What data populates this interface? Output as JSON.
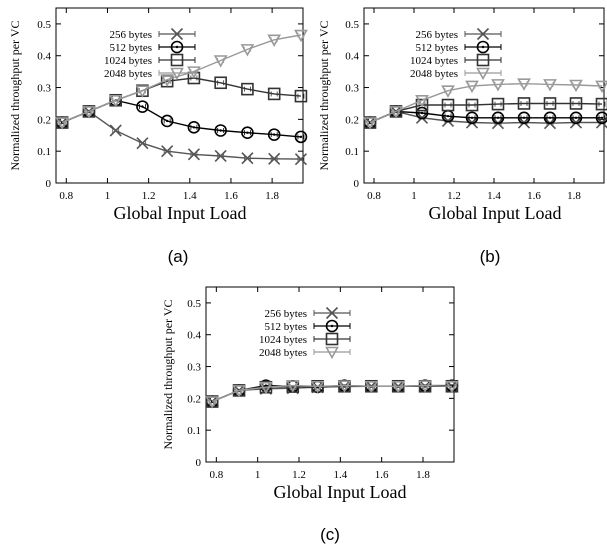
{
  "chart_data": [
    {
      "type": "line",
      "caption": "(a)",
      "xlabel": "Global Input Load",
      "ylabel": "Normalized throughput per VC",
      "xlim": [
        0.75,
        1.95
      ],
      "ylim": [
        0,
        0.55
      ],
      "xticks": [
        "0.8",
        "1",
        "1.2",
        "1.4",
        "1.6",
        "1.8"
      ],
      "yticks": [
        "0",
        "0.1",
        "0.2",
        "0.3",
        "0.4",
        "0.5"
      ],
      "legend_position": "top-left",
      "x": [
        0.78,
        0.91,
        1.04,
        1.17,
        1.29,
        1.42,
        1.55,
        1.68,
        1.81,
        1.94
      ],
      "series": [
        {
          "name": "256 bytes",
          "marker": "x",
          "color": "#555555",
          "values": [
            0.19,
            0.225,
            0.165,
            0.125,
            0.1,
            0.09,
            0.085,
            0.078,
            0.076,
            0.075
          ]
        },
        {
          "name": "512 bytes",
          "marker": "circle",
          "color": "#000000",
          "values": [
            0.19,
            0.225,
            0.26,
            0.24,
            0.195,
            0.175,
            0.165,
            0.158,
            0.152,
            0.145
          ]
        },
        {
          "name": "1024 bytes",
          "marker": "square",
          "color": "#333333",
          "values": [
            0.19,
            0.225,
            0.26,
            0.29,
            0.32,
            0.33,
            0.315,
            0.295,
            0.28,
            0.273
          ]
        },
        {
          "name": "2048 bytes",
          "marker": "triangle",
          "color": "#999999",
          "values": [
            0.19,
            0.225,
            0.26,
            0.29,
            0.325,
            0.35,
            0.385,
            0.42,
            0.45,
            0.465
          ]
        }
      ]
    },
    {
      "type": "line",
      "caption": "(b)",
      "xlabel": "Global Input Load",
      "ylabel": "Normalized throughput per VC",
      "xlim": [
        0.75,
        1.95
      ],
      "ylim": [
        0,
        0.55
      ],
      "xticks": [
        "0.8",
        "1",
        "1.2",
        "1.4",
        "1.6",
        "1.8"
      ],
      "yticks": [
        "0",
        "0.1",
        "0.2",
        "0.3",
        "0.4",
        "0.5"
      ],
      "legend_position": "top-left",
      "x": [
        0.78,
        0.91,
        1.04,
        1.17,
        1.29,
        1.42,
        1.55,
        1.68,
        1.81,
        1.94
      ],
      "series": [
        {
          "name": "256 bytes",
          "marker": "x",
          "color": "#555555",
          "values": [
            0.19,
            0.225,
            0.205,
            0.195,
            0.19,
            0.188,
            0.19,
            0.188,
            0.19,
            0.19
          ]
        },
        {
          "name": "512 bytes",
          "marker": "circle",
          "color": "#000000",
          "values": [
            0.19,
            0.225,
            0.22,
            0.21,
            0.205,
            0.205,
            0.205,
            0.205,
            0.205,
            0.205
          ]
        },
        {
          "name": "1024 bytes",
          "marker": "square",
          "color": "#333333",
          "values": [
            0.19,
            0.225,
            0.245,
            0.245,
            0.245,
            0.248,
            0.25,
            0.25,
            0.25,
            0.248
          ]
        },
        {
          "name": "2048 bytes",
          "marker": "triangle",
          "color": "#999999",
          "values": [
            0.19,
            0.225,
            0.26,
            0.29,
            0.305,
            0.31,
            0.312,
            0.31,
            0.308,
            0.305
          ]
        }
      ]
    },
    {
      "type": "line",
      "caption": "(c)",
      "xlabel": "Global Input Load",
      "ylabel": "Normalized throughput per VC",
      "xlim": [
        0.75,
        1.95
      ],
      "ylim": [
        0,
        0.55
      ],
      "xticks": [
        "0.8",
        "1",
        "1.2",
        "1.4",
        "1.6",
        "1.8"
      ],
      "yticks": [
        "0",
        "0.1",
        "0.2",
        "0.3",
        "0.4",
        "0.5"
      ],
      "legend_position": "top-left",
      "x": [
        0.78,
        0.91,
        1.04,
        1.17,
        1.29,
        1.42,
        1.55,
        1.68,
        1.81,
        1.94
      ],
      "series": [
        {
          "name": "256 bytes",
          "marker": "x",
          "color": "#555555",
          "values": [
            0.19,
            0.225,
            0.23,
            0.232,
            0.235,
            0.237,
            0.238,
            0.238,
            0.238,
            0.238
          ]
        },
        {
          "name": "512 bytes",
          "marker": "circle",
          "color": "#000000",
          "values": [
            0.19,
            0.225,
            0.24,
            0.238,
            0.236,
            0.24,
            0.238,
            0.238,
            0.24,
            0.24
          ]
        },
        {
          "name": "1024 bytes",
          "marker": "square",
          "color": "#333333",
          "values": [
            0.19,
            0.225,
            0.235,
            0.237,
            0.238,
            0.238,
            0.238,
            0.238,
            0.238,
            0.238
          ]
        },
        {
          "name": "2048 bytes",
          "marker": "triangle",
          "color": "#999999",
          "values": [
            0.19,
            0.225,
            0.235,
            0.24,
            0.238,
            0.24,
            0.238,
            0.238,
            0.24,
            0.238
          ]
        }
      ]
    }
  ]
}
